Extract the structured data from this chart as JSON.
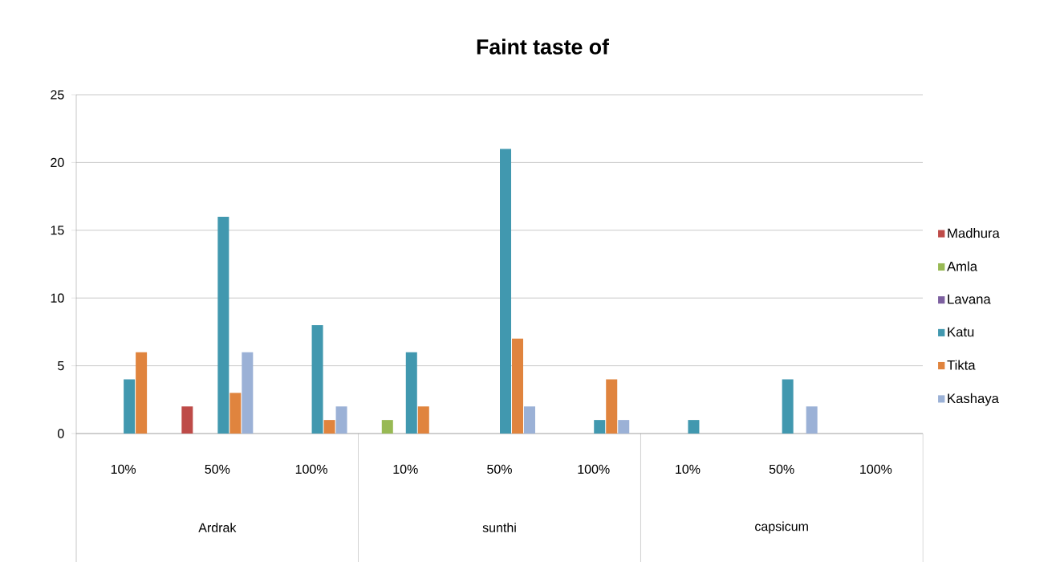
{
  "chart_data": {
    "type": "bar",
    "title": "Faint taste of",
    "categories": [
      "10%",
      "50%",
      "100%",
      "10%",
      "50%",
      "100%",
      "10%",
      "50%",
      "100%"
    ],
    "annotations": [
      "Ardrak",
      "sunthi",
      "capsicum"
    ],
    "series": [
      {
        "name": "Madhura",
        "color": "#be4b48",
        "values": [
          0,
          2,
          0,
          0,
          0,
          0,
          0,
          0,
          0
        ]
      },
      {
        "name": "Amla",
        "color": "#98b954",
        "values": [
          0,
          0,
          0,
          1,
          0,
          0,
          0,
          0,
          0
        ]
      },
      {
        "name": "Lavana",
        "color": "#7d60a0",
        "values": [
          0,
          0,
          0,
          0,
          0,
          0,
          0,
          0,
          0
        ]
      },
      {
        "name": "Katu",
        "color": "#4198af",
        "values": [
          4,
          16,
          8,
          6,
          21,
          1,
          1,
          4,
          0
        ]
      },
      {
        "name": "Tikta",
        "color": "#e0843e",
        "values": [
          6,
          3,
          1,
          2,
          7,
          4,
          0,
          0,
          0
        ]
      },
      {
        "name": "Kashaya",
        "color": "#9bb1d6",
        "values": [
          0,
          6,
          2,
          0,
          2,
          1,
          0,
          2,
          0
        ]
      }
    ],
    "ylim": [
      0,
      25
    ],
    "yticks": [
      0,
      5,
      10,
      15,
      20,
      25
    ],
    "grid": "y",
    "legend": "right"
  }
}
